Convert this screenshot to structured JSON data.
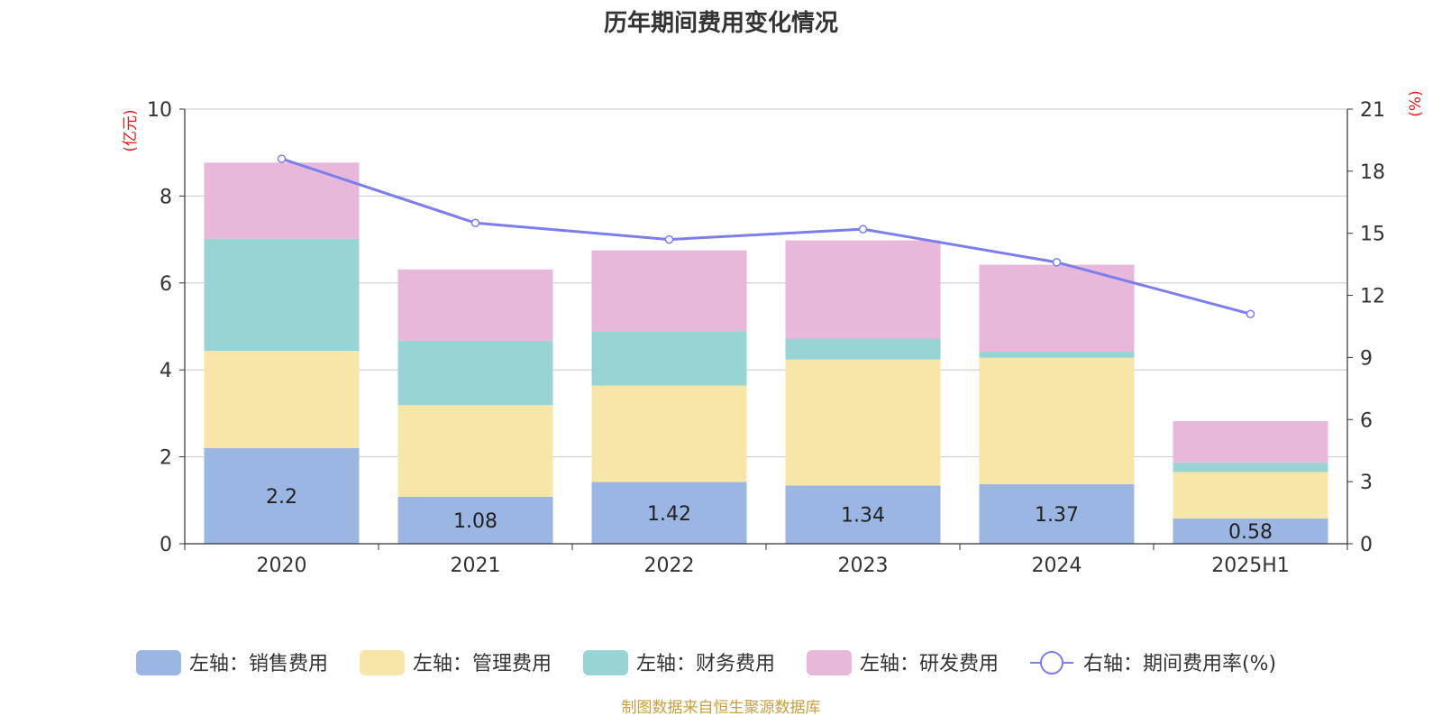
{
  "title": "历年期间费用变化情况",
  "source_note": "制图数据来自恒生聚源数据库",
  "colors": {
    "sales": "#9BB6E2",
    "admin": "#F8E6A8",
    "finance": "#98D4D4",
    "rd": "#E7B8D9",
    "rate": "#7B7EEC",
    "axis_unit": "#E81818",
    "source": "#C8A03C",
    "grid": "#C8C8C8",
    "axis": "#333333"
  },
  "chart_data": {
    "type": "bar",
    "stacked": true,
    "categories": [
      "2020",
      "2021",
      "2022",
      "2023",
      "2024",
      "2025H1"
    ],
    "left_axis": {
      "unit": "(亿元)",
      "range": [
        0,
        10
      ],
      "ticks": [
        "0",
        "2",
        "4",
        "6",
        "8",
        "10"
      ]
    },
    "right_axis": {
      "unit": "(%)",
      "range": [
        0,
        21
      ],
      "ticks": [
        "0",
        "3",
        "6",
        "9",
        "12",
        "15",
        "18",
        "21"
      ]
    },
    "series": [
      {
        "name": "左轴：销售费用",
        "key": "sales",
        "axis": "left",
        "type": "bar",
        "values": [
          2.2,
          1.08,
          1.42,
          1.34,
          1.37,
          0.58
        ],
        "labels": [
          "2.2",
          "1.08",
          "1.42",
          "1.34",
          "1.37",
          "0.58"
        ]
      },
      {
        "name": "左轴：管理费用",
        "key": "admin",
        "axis": "left",
        "type": "bar",
        "values": [
          2.24,
          2.11,
          2.22,
          2.9,
          2.91,
          1.07
        ]
      },
      {
        "name": "左轴：财务费用",
        "key": "finance",
        "axis": "left",
        "type": "bar",
        "values": [
          2.58,
          1.48,
          1.25,
          0.48,
          0.14,
          0.22
        ]
      },
      {
        "name": "左轴：研发费用",
        "key": "rd",
        "axis": "left",
        "type": "bar",
        "values": [
          1.75,
          1.64,
          1.86,
          2.26,
          2.0,
          0.95
        ]
      },
      {
        "name": "右轴：期间费用率(%)",
        "key": "rate",
        "axis": "right",
        "type": "line",
        "values": [
          18.6,
          15.5,
          14.7,
          15.2,
          13.6,
          11.1
        ]
      }
    ],
    "grid": true,
    "legend_position": "bottom"
  }
}
